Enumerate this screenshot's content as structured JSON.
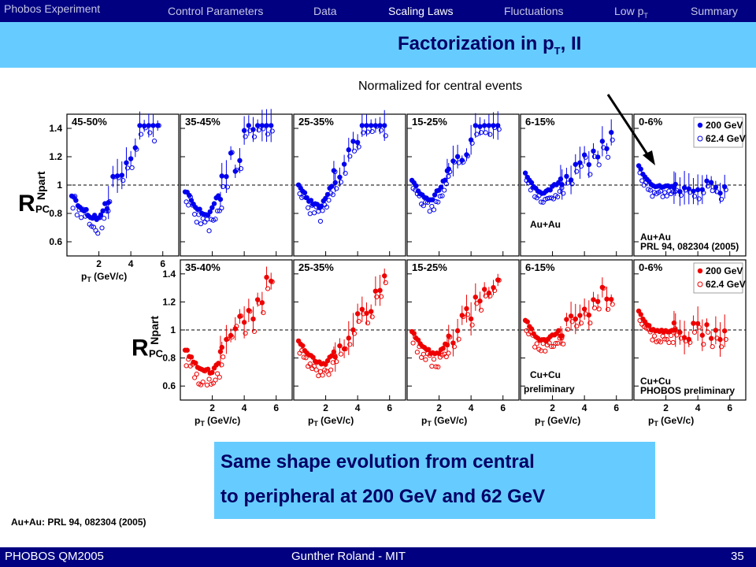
{
  "header": {
    "experiment": "Phobos Experiment",
    "nav": [
      {
        "label": "Control Parameters",
        "active": false
      },
      {
        "label": "Data",
        "active": false
      },
      {
        "label": "Scaling Laws",
        "active": true
      },
      {
        "label": "Fluctuations",
        "active": false
      },
      {
        "label": "Low p",
        "sub": "T",
        "active": false
      },
      {
        "label": "Summary",
        "active": false
      }
    ]
  },
  "title": {
    "main": "Factorization in p",
    "sub": "T",
    "suffix": ", II"
  },
  "annotation": "Normalized for central events",
  "chart_data": [
    {
      "type": "scatter",
      "system": "Au+Au",
      "system_label": "Au+Au",
      "reference": "PRL 94, 082304 (2005)",
      "ylabel": "R",
      "ylabel_sup": "Npart",
      "ylabel_sub": "PC",
      "xlabel": "p",
      "xlabel_sub": "T",
      "xlabel_unit": " (GeV/c)",
      "ylim": [
        0.5,
        1.5
      ],
      "xlim": [
        0,
        7
      ],
      "yticks": [
        "0.6",
        "0.8",
        "1",
        "1.2",
        "1.4"
      ],
      "xticks": [
        "2",
        "4",
        "6"
      ],
      "color": "#0000ee",
      "legend": [
        "200 GeV",
        "62.4 GeV"
      ],
      "panels": [
        {
          "label": "45-50%",
          "min": 0.77,
          "xmin": 2.0,
          "slope": 0.22,
          "noise": 0.14
        },
        {
          "label": "35-45%",
          "min": 0.8,
          "xmin": 1.8,
          "slope": 0.24,
          "noise": 0.1
        },
        {
          "label": "25-35%",
          "min": 0.85,
          "xmin": 1.7,
          "slope": 0.22,
          "noise": 0.08
        },
        {
          "label": "15-25%",
          "min": 0.89,
          "xmin": 1.5,
          "slope": 0.17,
          "noise": 0.07
        },
        {
          "label": "6-15%",
          "min": 0.94,
          "xmin": 1.5,
          "slope": 0.09,
          "noise": 0.06
        },
        {
          "label": "0-6%",
          "min": 0.99,
          "xmin": 1.5,
          "slope": 0.0,
          "noise": 0.05
        }
      ]
    },
    {
      "type": "scatter",
      "system": "Cu+Cu",
      "system_label": "Cu+Cu",
      "system_note": "preliminary",
      "reference": "PHOBOS preliminary",
      "ylabel": "R",
      "ylabel_sup": "Npart",
      "ylabel_sub": "PC",
      "xlabel": "p",
      "xlabel_sub": "T",
      "xlabel_unit": " (GeV/c)",
      "ylim": [
        0.5,
        1.5
      ],
      "xlim": [
        0,
        7
      ],
      "yticks": [
        "0.6",
        "0.8",
        "1",
        "1.2",
        "1.4"
      ],
      "xticks": [
        "2",
        "4",
        "6"
      ],
      "color": "#ee0000",
      "legend": [
        "200 GeV",
        "62.4 GeV"
      ],
      "panels": [
        {
          "label": "35-40%",
          "min": 0.7,
          "xmin": 2.0,
          "slope": 0.18,
          "noise": 0.12
        },
        {
          "label": "25-35%",
          "min": 0.76,
          "xmin": 2.0,
          "slope": 0.15,
          "noise": 0.08
        },
        {
          "label": "15-25%",
          "min": 0.83,
          "xmin": 1.9,
          "slope": 0.14,
          "noise": 0.08
        },
        {
          "label": "6-15%",
          "min": 0.92,
          "xmin": 1.6,
          "slope": 0.09,
          "noise": 0.07
        },
        {
          "label": "0-6%",
          "min": 0.99,
          "xmin": 1.5,
          "slope": 0.0,
          "noise": 0.06
        }
      ]
    }
  ],
  "summary": {
    "line1": "Same shape evolution from central",
    "line2": "to peripheral at 200 GeV and 62 GeV"
  },
  "reference_note": "Au+Au:  PRL 94, 082304 (2005)",
  "footer": {
    "left": "PHOBOS QM2005",
    "center": "Gunther Roland - MIT",
    "page": "35"
  }
}
